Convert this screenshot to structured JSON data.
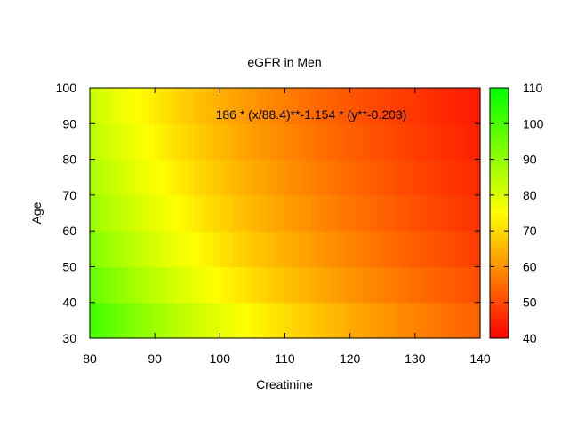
{
  "chart_data": {
    "type": "heatmap",
    "title": "eGFR in Men",
    "xlabel": "Creatinine",
    "ylabel": "Age",
    "xlim": [
      80,
      140
    ],
    "ylim": [
      30,
      100
    ],
    "x_ticks": [
      "80",
      "90",
      "100",
      "110",
      "120",
      "130",
      "140"
    ],
    "y_ticks": [
      "30",
      "40",
      "50",
      "60",
      "70",
      "80",
      "90",
      "100"
    ],
    "annotation": "186 * (x/88.4)**-1.154 * (y**-0.203)",
    "colorbar": {
      "range": [
        40,
        110
      ],
      "ticks": [
        "40",
        "50",
        "60",
        "70",
        "80",
        "90",
        "100",
        "110"
      ],
      "colors": [
        "#ff0000",
        "#ffff00",
        "#00ff00"
      ]
    },
    "grid": false
  }
}
